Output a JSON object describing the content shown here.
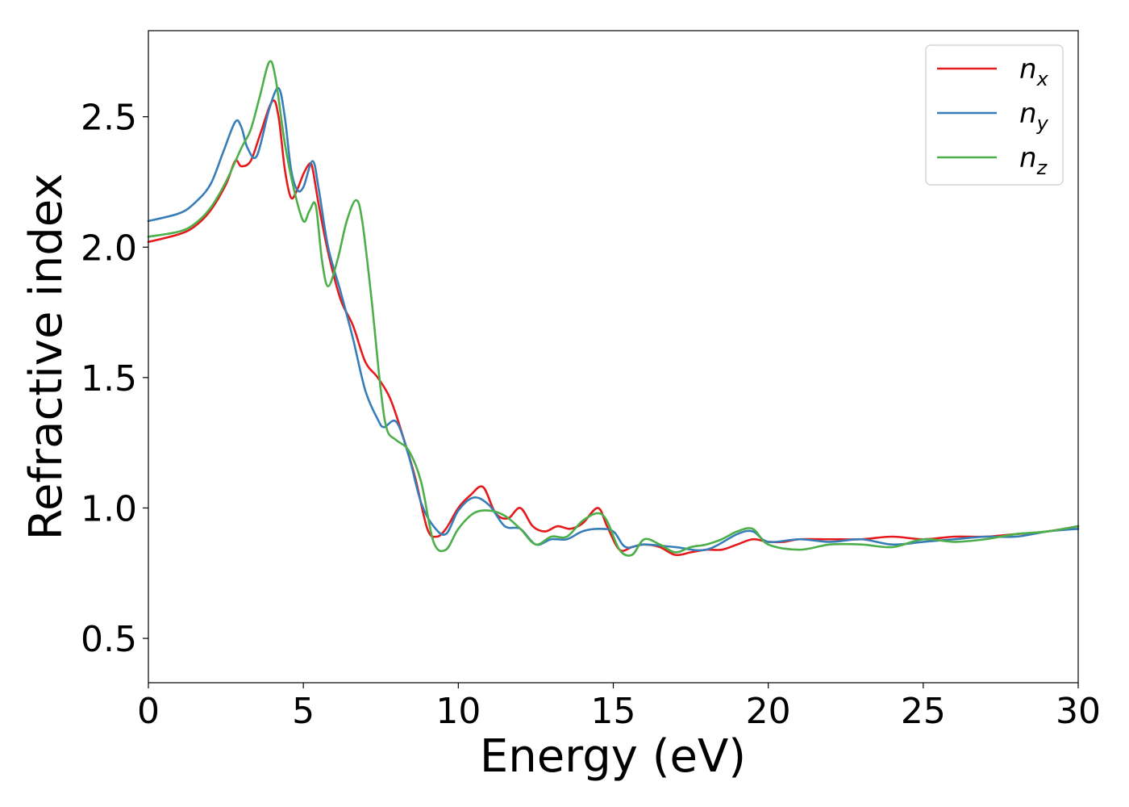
{
  "chart_data": {
    "type": "line",
    "xlabel": "Energy (eV)",
    "ylabel": "Refractive index",
    "xlim": [
      0,
      30
    ],
    "ylim": [
      0.33,
      2.83
    ],
    "xticks": [
      0,
      5,
      10,
      15,
      20,
      25,
      30
    ],
    "xtick_labels": [
      "0",
      "5",
      "10",
      "15",
      "20",
      "25",
      "30"
    ],
    "yticks": [
      0.5,
      1.0,
      1.5,
      2.0,
      2.5
    ],
    "ytick_labels": [
      "0.5",
      "1.0",
      "1.5",
      "2.0",
      "2.5"
    ],
    "grid": false,
    "legend_position": "top-right",
    "series": [
      {
        "name": "n_x",
        "label_main": "n",
        "label_sub": "x",
        "color": "#e41a1c",
        "x": [
          0,
          1,
          1.5,
          2,
          2.5,
          2.8,
          3.0,
          3.3,
          3.6,
          4.0,
          4.2,
          4.4,
          4.6,
          4.8,
          5.0,
          5.2,
          5.3,
          5.5,
          5.8,
          6.2,
          6.6,
          7.0,
          7.4,
          7.8,
          8.2,
          8.6,
          9.0,
          9.3,
          9.6,
          10.0,
          10.4,
          10.8,
          11.2,
          11.6,
          12.0,
          12.4,
          12.8,
          13.2,
          13.6,
          14.0,
          14.5,
          14.8,
          15.2,
          15.6,
          16.0,
          16.5,
          17.0,
          17.5,
          18.0,
          18.5,
          19.0,
          19.5,
          20.0,
          20.5,
          21,
          22,
          23,
          24,
          25,
          26,
          27,
          28,
          29,
          30
        ],
        "values": [
          2.02,
          2.05,
          2.08,
          2.14,
          2.24,
          2.33,
          2.31,
          2.33,
          2.43,
          2.56,
          2.5,
          2.3,
          2.19,
          2.22,
          2.28,
          2.32,
          2.3,
          2.16,
          1.98,
          1.8,
          1.7,
          1.56,
          1.5,
          1.42,
          1.28,
          1.12,
          0.92,
          0.89,
          0.92,
          1.0,
          1.05,
          1.08,
          0.98,
          0.96,
          1.0,
          0.93,
          0.91,
          0.93,
          0.92,
          0.94,
          1.0,
          0.93,
          0.84,
          0.85,
          0.86,
          0.85,
          0.82,
          0.83,
          0.84,
          0.84,
          0.86,
          0.88,
          0.87,
          0.87,
          0.88,
          0.88,
          0.88,
          0.89,
          0.88,
          0.89,
          0.89,
          0.9,
          0.91,
          0.93
        ]
      },
      {
        "name": "n_y",
        "label_main": "n",
        "label_sub": "y",
        "color": "#377eb8",
        "x": [
          0,
          1,
          1.5,
          2,
          2.4,
          2.8,
          3.0,
          3.2,
          3.5,
          3.9,
          4.2,
          4.4,
          4.6,
          4.8,
          5.0,
          5.3,
          5.5,
          5.8,
          6.2,
          6.6,
          7.0,
          7.4,
          7.6,
          8.0,
          8.4,
          8.8,
          9.2,
          9.6,
          10.0,
          10.5,
          11.0,
          11.5,
          12.0,
          12.5,
          13.0,
          13.5,
          14.0,
          14.5,
          15.0,
          15.4,
          16.0,
          17.0,
          18.0,
          19.0,
          19.5,
          20.0,
          21,
          22,
          23,
          24,
          25,
          26,
          27,
          28,
          29,
          30
        ],
        "values": [
          2.1,
          2.13,
          2.17,
          2.24,
          2.36,
          2.48,
          2.46,
          2.38,
          2.35,
          2.53,
          2.61,
          2.5,
          2.3,
          2.22,
          2.23,
          2.33,
          2.22,
          2.0,
          1.83,
          1.65,
          1.45,
          1.34,
          1.31,
          1.33,
          1.2,
          1.02,
          0.93,
          0.9,
          0.99,
          1.04,
          1.01,
          0.93,
          0.92,
          0.86,
          0.88,
          0.88,
          0.91,
          0.92,
          0.91,
          0.85,
          0.86,
          0.85,
          0.84,
          0.9,
          0.91,
          0.87,
          0.88,
          0.87,
          0.88,
          0.86,
          0.87,
          0.88,
          0.89,
          0.89,
          0.91,
          0.92
        ]
      },
      {
        "name": "n_z",
        "label_main": "n",
        "label_sub": "z",
        "color": "#4daf4a",
        "x": [
          0,
          1,
          1.5,
          2,
          2.5,
          3.0,
          3.3,
          3.6,
          3.9,
          4.1,
          4.4,
          4.7,
          5.0,
          5.2,
          5.4,
          5.6,
          5.8,
          6.1,
          6.4,
          6.7,
          6.9,
          7.2,
          7.5,
          7.7,
          8.0,
          8.4,
          8.8,
          9.2,
          9.6,
          10.0,
          10.5,
          11.0,
          11.5,
          12.0,
          12.5,
          13.0,
          13.5,
          14.0,
          14.5,
          14.8,
          15.2,
          15.6,
          16.0,
          16.5,
          17.0,
          17.5,
          18.0,
          18.5,
          19.0,
          19.5,
          20.0,
          21,
          22,
          23,
          24,
          25,
          26,
          27,
          28,
          29,
          30
        ],
        "values": [
          2.04,
          2.06,
          2.09,
          2.15,
          2.25,
          2.38,
          2.45,
          2.58,
          2.71,
          2.65,
          2.4,
          2.22,
          2.1,
          2.14,
          2.16,
          1.95,
          1.85,
          1.95,
          2.1,
          2.18,
          2.1,
          1.8,
          1.45,
          1.3,
          1.26,
          1.22,
          1.1,
          0.87,
          0.84,
          0.92,
          0.98,
          0.99,
          0.97,
          0.92,
          0.86,
          0.89,
          0.89,
          0.95,
          0.98,
          0.95,
          0.84,
          0.82,
          0.88,
          0.86,
          0.83,
          0.85,
          0.86,
          0.88,
          0.91,
          0.92,
          0.86,
          0.84,
          0.86,
          0.86,
          0.85,
          0.88,
          0.87,
          0.88,
          0.9,
          0.91,
          0.93
        ]
      }
    ]
  }
}
